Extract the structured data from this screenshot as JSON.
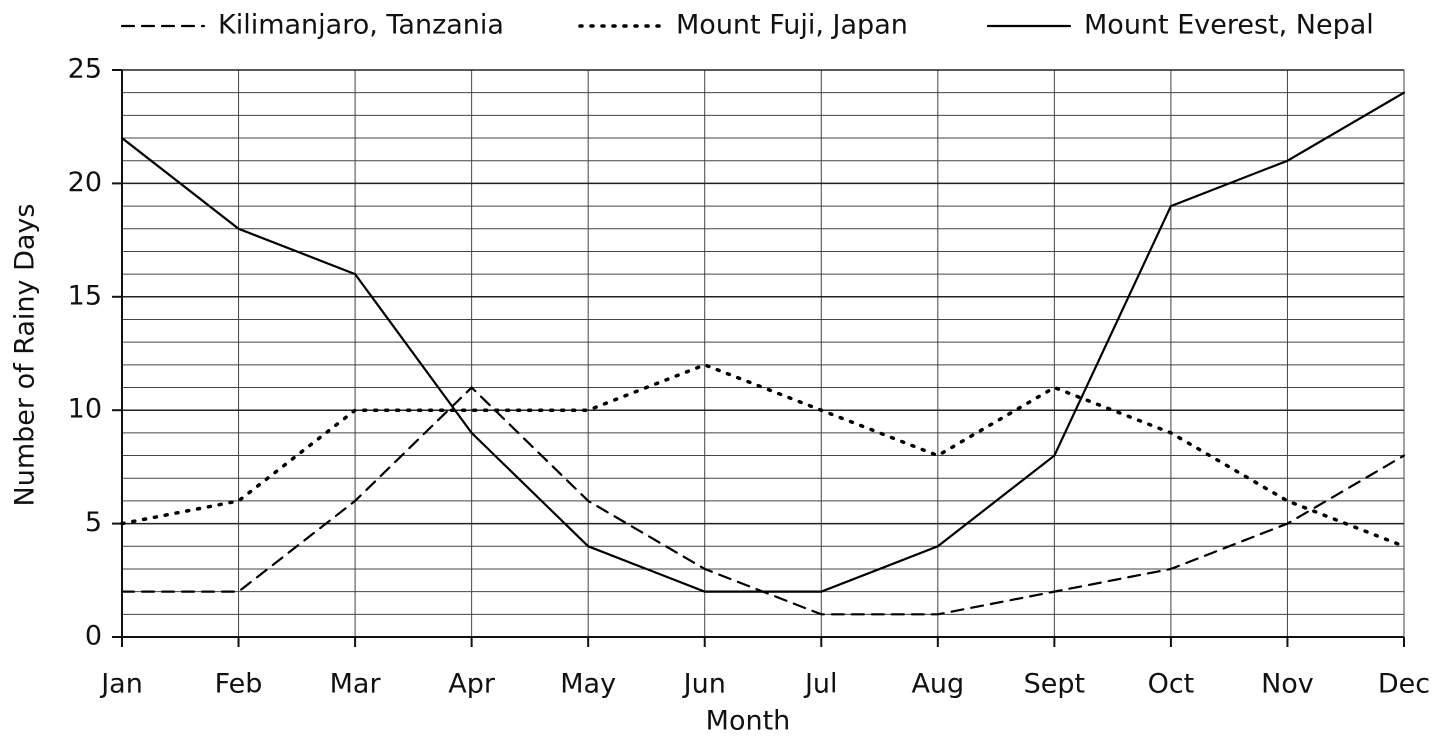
{
  "chart_data": {
    "type": "line",
    "xlabel": "Month",
    "ylabel": "Number of Rainy Days",
    "categories": [
      "Jan",
      "Feb",
      "Mar",
      "Apr",
      "May",
      "Jun",
      "Jul",
      "Aug",
      "Sept",
      "Oct",
      "Nov",
      "Dec"
    ],
    "series": [
      {
        "name": "Kilimanjaro, Tanzania",
        "color": "#000000",
        "dash": "dashed",
        "values": [
          2,
          2,
          6,
          11,
          6,
          3,
          1,
          1,
          2,
          3,
          5,
          8
        ]
      },
      {
        "name": "Mount Fuji, Japan",
        "color": "#000000",
        "dash": "dotted",
        "values": [
          5,
          6,
          10,
          10,
          10,
          12,
          10,
          8,
          11,
          9,
          6,
          4
        ]
      },
      {
        "name": "Mount Everest, Nepal",
        "color": "#000000",
        "dash": "solid",
        "values": [
          22,
          18,
          16,
          9,
          4,
          2,
          2,
          4,
          8,
          19,
          21,
          24
        ]
      }
    ],
    "ylim": [
      0,
      25
    ],
    "yticks": [
      0,
      5,
      10,
      15,
      20,
      25
    ],
    "grid": true,
    "legend": "top"
  }
}
